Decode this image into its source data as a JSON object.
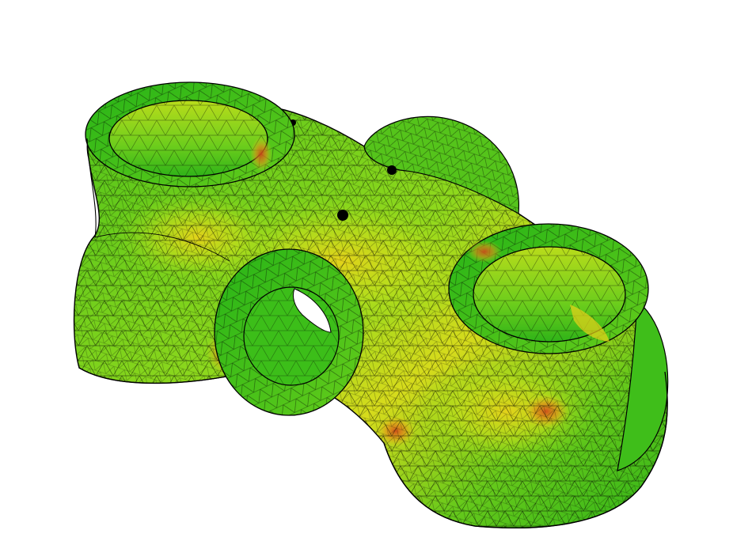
{
  "scene": {
    "background": "#ffffff",
    "object": "fem-mesh-part",
    "render_style": "triangulated-surface-with-scalar-colormap",
    "mesh_line_color": "#000000",
    "colormap": [
      "#0fae0f",
      "#3dc11a",
      "#7fd61c",
      "#c4e21b",
      "#e8d21a",
      "#e88a18",
      "#d2451a"
    ],
    "features": [
      {
        "name": "top-left-boss-with-bore"
      },
      {
        "name": "front-center-boss-with-through-hole"
      },
      {
        "name": "right-boss-with-bore"
      },
      {
        "name": "rear-lobe"
      },
      {
        "name": "central-body"
      }
    ]
  }
}
